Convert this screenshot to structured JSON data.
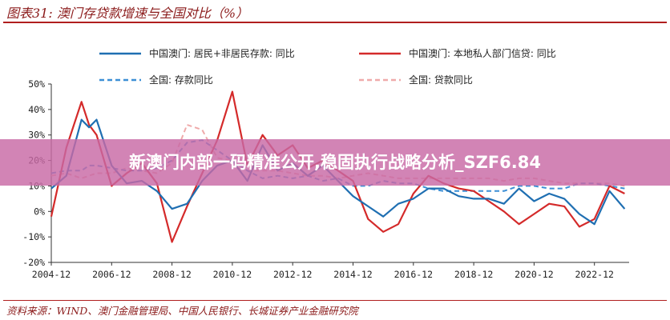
{
  "figure": {
    "title": "图表31:  澳门存贷款增速与全国对比（%）",
    "source": "资料来源：WIND、澳门金融管理局、中国人民银行、长城证券产业金融研究院"
  },
  "banner": {
    "text": "新澳门内部一码精准公开,稳固执行战略分析_SZF6.84"
  },
  "colors": {
    "macau_deposit": "#1f6fb2",
    "macau_loan": "#d42a2a",
    "national_deposit": "#3c8fd6",
    "national_loan": "#efaaaa",
    "title_red": "#b01e1e"
  },
  "chart_data": {
    "type": "line",
    "title": "",
    "xlabel": "",
    "ylabel": "",
    "x_ticks": [
      "2004-12",
      "2006-12",
      "2008-12",
      "2010-12",
      "2012-12",
      "2014-12",
      "2016-12",
      "2018-12",
      "2020-12",
      "2022-12"
    ],
    "y_ticks": [
      "50%",
      "40%",
      "30%",
      "20%",
      "10%",
      "0%",
      "-10%",
      "-20%"
    ],
    "ylim": [
      -20,
      50
    ],
    "grid": false,
    "legend_position": "top",
    "x": [
      "2004-12",
      "2005-06",
      "2005-12",
      "2006-03",
      "2006-06",
      "2006-12",
      "2007-06",
      "2007-12",
      "2008-06",
      "2008-12",
      "2009-06",
      "2009-12",
      "2010-06",
      "2010-12",
      "2011-06",
      "2011-12",
      "2012-06",
      "2012-12",
      "2013-06",
      "2013-12",
      "2014-06",
      "2014-12",
      "2015-06",
      "2015-12",
      "2016-06",
      "2016-12",
      "2017-06",
      "2017-12",
      "2018-06",
      "2018-12",
      "2019-06",
      "2019-12",
      "2020-06",
      "2020-12",
      "2021-06",
      "2021-12",
      "2022-06",
      "2022-12",
      "2023-06",
      "2023-12"
    ],
    "series": [
      {
        "name": "中国澳门: 居民+非居民存款: 同比",
        "style": "solid",
        "color": "#1f6fb2",
        "values": [
          9,
          14,
          36,
          33,
          36,
          18,
          11,
          12,
          8,
          1,
          3,
          12,
          18,
          20,
          12,
          26,
          16,
          19,
          14,
          18,
          12,
          6,
          2,
          -2,
          3,
          5,
          9,
          9,
          6,
          5,
          5,
          3,
          9,
          4,
          7,
          5,
          -1,
          -5,
          8,
          1
        ]
      },
      {
        "name": "中国澳门: 本地私人部门信贷: 同比",
        "style": "solid",
        "color": "#d42a2a",
        "values": [
          -2,
          25,
          43,
          34,
          30,
          10,
          15,
          19,
          11,
          -12,
          2,
          15,
          28,
          47,
          18,
          30,
          22,
          26,
          17,
          20,
          16,
          12,
          -3,
          -8,
          -5,
          7,
          14,
          11,
          9,
          8,
          4,
          0,
          -5,
          -1,
          3,
          2,
          -6,
          -3,
          10,
          7
        ]
      },
      {
        "name": "全国: 存款同比",
        "style": "dashed",
        "color": "#3c8fd6",
        "values": [
          15,
          16,
          16,
          18,
          18,
          17,
          16,
          16,
          17,
          20,
          27,
          28,
          24,
          20,
          16,
          13,
          14,
          13,
          14,
          12,
          13,
          10,
          10,
          12,
          11,
          11,
          9,
          8,
          8,
          8,
          8,
          8,
          10,
          10,
          9,
          9,
          11,
          11,
          10,
          9
        ]
      },
      {
        "name": "全国: 贷款同比",
        "style": "dashed",
        "color": "#efaaaa",
        "values": [
          14,
          15,
          13,
          14,
          15,
          15,
          17,
          16,
          15,
          19,
          34,
          32,
          21,
          20,
          16,
          16,
          16,
          15,
          14,
          14,
          13,
          14,
          15,
          14,
          13,
          13,
          13,
          13,
          13,
          13,
          13,
          12,
          13,
          13,
          12,
          11,
          11,
          11,
          11,
          10
        ]
      }
    ]
  }
}
